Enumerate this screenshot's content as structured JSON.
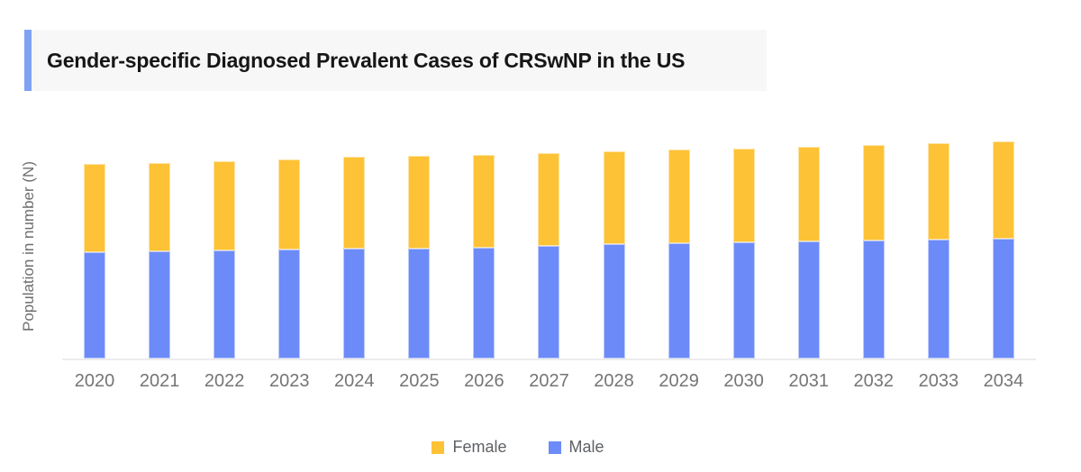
{
  "title": "Gender-specific Diagnosed Prevalent Cases of CRSwNP in the US",
  "colors": {
    "female": "#FDC235",
    "male": "#6C8BF8",
    "title_accent": "#7FA3F3",
    "title_background": "#F7F7F7",
    "axis_text": "#757575",
    "baseline": "#ECECEC"
  },
  "chart_data": {
    "type": "bar",
    "stacked": true,
    "title": "Gender-specific Diagnosed Prevalent Cases of CRSwNP in the US",
    "categories": [
      "2020",
      "2021",
      "2022",
      "2023",
      "2024",
      "2025",
      "2026",
      "2027",
      "2028",
      "2029",
      "2030",
      "2031",
      "2032",
      "2033",
      "2034"
    ],
    "series": [
      {
        "name": "Female",
        "color": "#FDC235",
        "stack_position": "top",
        "values": [
          98,
          98,
          99,
          100,
          102,
          103,
          103,
          103,
          103,
          104,
          104,
          105,
          106,
          107,
          108
        ]
      },
      {
        "name": "Male",
        "color": "#6C8BF8",
        "stack_position": "bottom",
        "values": [
          118,
          119,
          120,
          121,
          122,
          122.5,
          123.5,
          125,
          127,
          128,
          129,
          130,
          131,
          132.5,
          133.5
        ]
      }
    ],
    "value_units": "relative height units (y-axis has no numeric tick labels in source image)",
    "xlabel": "",
    "ylabel": "Population in number (N)",
    "ylim": [
      0,
      248
    ],
    "grid": false,
    "y_axis_numeric_labels": false,
    "legend_position": "bottom",
    "legend_order": [
      "Female",
      "Male"
    ]
  },
  "legend": {
    "items": [
      {
        "label": "Female",
        "color": "#FDC235"
      },
      {
        "label": "Male",
        "color": "#6C8BF8"
      }
    ]
  }
}
